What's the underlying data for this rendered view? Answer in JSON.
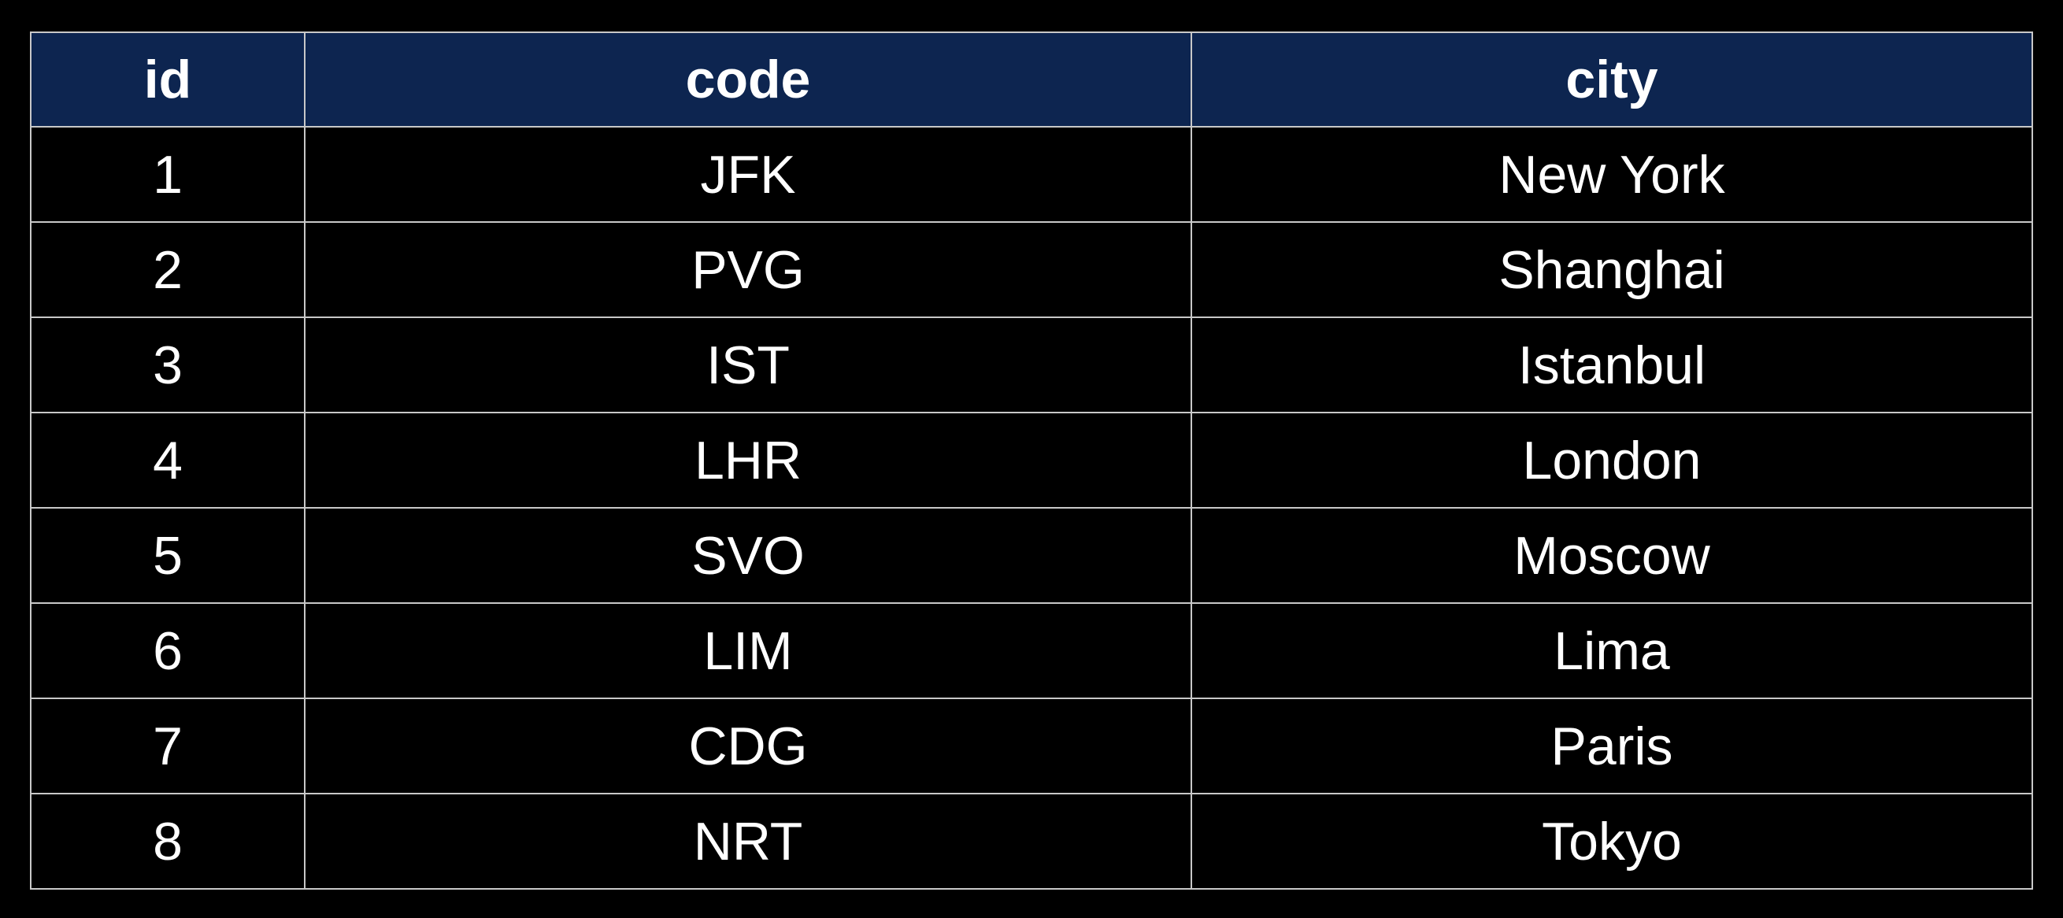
{
  "table": {
    "headers": [
      "id",
      "code",
      "city"
    ],
    "rows": [
      [
        "1",
        "JFK",
        "New York"
      ],
      [
        "2",
        "PVG",
        "Shanghai"
      ],
      [
        "3",
        "IST",
        "Istanbul"
      ],
      [
        "4",
        "LHR",
        "London"
      ],
      [
        "5",
        "SVO",
        "Moscow"
      ],
      [
        "6",
        "LIM",
        "Lima"
      ],
      [
        "7",
        "CDG",
        "Paris"
      ],
      [
        "8",
        "NRT",
        "Tokyo"
      ]
    ]
  },
  "colors": {
    "background": "#000000",
    "header_background": "#0d2550",
    "text": "#ffffff",
    "grid": "#c8c8c8"
  }
}
